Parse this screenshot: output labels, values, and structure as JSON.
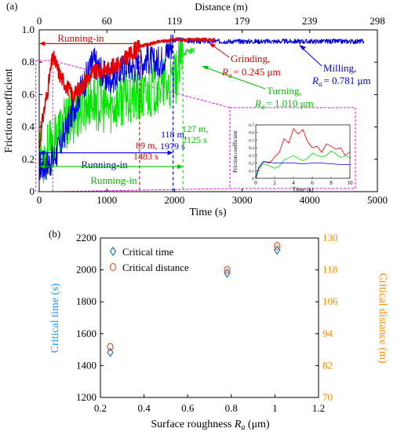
{
  "chart_data": [
    {
      "panel_label": "(a)",
      "type": "line",
      "xlabel": "Time (s)",
      "ylabel": "Friction coefficient",
      "top_axis_label": "Distance (m)",
      "xlim": [
        0,
        5000
      ],
      "ylim": [
        0,
        1.0
      ],
      "xticks": [
        0,
        1000,
        2000,
        3000,
        4000,
        5000
      ],
      "yticks": [
        0,
        0.2,
        0.4,
        0.6,
        0.8,
        1.0
      ],
      "yticklabels": [
        "0",
        "0.2",
        "0.4",
        "0.6",
        "0.8",
        "1.0"
      ],
      "top_ticks": [
        {
          "time": 0,
          "label": "0"
        },
        {
          "time": 1000,
          "label": "60"
        },
        {
          "time": 2000,
          "label": "119"
        },
        {
          "time": 3000,
          "label": "179"
        },
        {
          "time": 4000,
          "label": "239"
        },
        {
          "time": 5000,
          "label": "298"
        }
      ],
      "colors": {
        "Milling": "#0000e0",
        "Grinding": "#e60000",
        "Turning": "#00e600",
        "zoom_box": "#ff00ff"
      },
      "series": [
        {
          "key": "Milling",
          "label_name": "Milling,",
          "label_ra": "= 0.781 μm",
          "x": [
            0,
            60,
            120,
            200,
            300,
            400,
            500,
            600,
            700,
            800,
            900,
            1000,
            1100,
            1200,
            1300,
            1400,
            1500,
            1600,
            1700,
            1800,
            1900,
            1979,
            2100,
            2300,
            2500,
            3000,
            3500,
            4000,
            4500,
            4800
          ],
          "y": [
            0.17,
            0.17,
            0.18,
            0.21,
            0.28,
            0.4,
            0.52,
            0.62,
            0.72,
            0.82,
            0.76,
            0.7,
            0.72,
            0.76,
            0.8,
            0.78,
            0.8,
            0.84,
            0.8,
            0.82,
            0.88,
            0.94,
            0.94,
            0.93,
            0.93,
            0.93,
            0.93,
            0.93,
            0.93,
            0.93
          ]
        },
        {
          "key": "Grinding",
          "label_name": "Grinding,",
          "label_ra": "= 0.245 μm",
          "x": [
            0,
            60,
            120,
            200,
            250,
            300,
            400,
            500,
            600,
            700,
            800,
            900,
            1000,
            1100,
            1200,
            1300,
            1400,
            1483,
            1600,
            1800,
            2000,
            2200,
            2400,
            2600
          ],
          "y": [
            0.28,
            0.48,
            0.62,
            0.84,
            0.79,
            0.73,
            0.66,
            0.6,
            0.64,
            0.7,
            0.74,
            0.75,
            0.76,
            0.78,
            0.8,
            0.84,
            0.87,
            0.9,
            0.91,
            0.93,
            0.94,
            0.94,
            0.94,
            0.94
          ]
        },
        {
          "key": "Turning",
          "label_name": "Turning,",
          "label_ra": "= 1.010 μm",
          "x": [
            0,
            60,
            120,
            200,
            300,
            400,
            500,
            600,
            700,
            800,
            900,
            1000,
            1100,
            1200,
            1300,
            1400,
            1500,
            1600,
            1700,
            1800,
            1900,
            2000,
            2125,
            2300
          ],
          "y": [
            0.33,
            0.22,
            0.28,
            0.3,
            0.4,
            0.44,
            0.48,
            0.52,
            0.56,
            0.58,
            0.55,
            0.53,
            0.55,
            0.58,
            0.62,
            0.6,
            0.58,
            0.62,
            0.66,
            0.68,
            0.66,
            0.7,
            0.86,
            0.88
          ]
        }
      ],
      "ra_symbol": "R",
      "ra_sub": "a",
      "annotations": {
        "running_in_top": "Running-in",
        "running_in_blue": "Running-in",
        "running_in_green": "Running-in",
        "grinding_crit": [
          "89 m,",
          "1483 s"
        ],
        "milling_crit": [
          "118 m,",
          "1979 s"
        ],
        "turning_crit": [
          "127 m,",
          "2125 s"
        ]
      },
      "inset": {
        "xlabel": "Time (s)",
        "ylabel": "Friction coefficient",
        "xlim": [
          0,
          10
        ],
        "ylim": [
          0,
          0.7
        ],
        "xticks": [
          0,
          2,
          4,
          6,
          8,
          10
        ],
        "yticks": [
          0,
          0.1,
          0.2,
          0.3,
          0.4,
          0.5,
          0.6,
          0.7
        ],
        "yticklabels": [
          "0",
          "0.1",
          "0.2",
          "0.3",
          "0.4",
          "0.5",
          "0.6",
          "0.7"
        ],
        "series": [
          {
            "key": "Grinding",
            "x": [
              0,
              0.3,
              0.8,
              1.5,
              2,
              2.5,
              3,
              3.5,
              4,
              4.5,
              5,
              5.5,
              6,
              6.5,
              7,
              7.5,
              8,
              8.5,
              9,
              9.5,
              10
            ],
            "y": [
              0,
              0.13,
              0.22,
              0.2,
              0.28,
              0.34,
              0.52,
              0.46,
              0.65,
              0.58,
              0.64,
              0.48,
              0.4,
              0.42,
              0.34,
              0.45,
              0.42,
              0.38,
              0.4,
              0.3,
              0.35
            ]
          },
          {
            "key": "Turning",
            "x": [
              0,
              0.3,
              0.8,
              1.5,
              2,
              2.5,
              3,
              3.5,
              4,
              4.5,
              5,
              5.5,
              6,
              6.5,
              7,
              7.5,
              8,
              8.5,
              9,
              9.5,
              10
            ],
            "y": [
              0,
              0.1,
              0.2,
              0.16,
              0.13,
              0.16,
              0.24,
              0.27,
              0.3,
              0.26,
              0.23,
              0.26,
              0.33,
              0.3,
              0.28,
              0.3,
              0.36,
              0.32,
              0.27,
              0.3,
              0.27
            ]
          },
          {
            "key": "Milling",
            "x": [
              0,
              0.3,
              0.8,
              1.5,
              2,
              3,
              4,
              5,
              6,
              7,
              8,
              9,
              10
            ],
            "y": [
              0,
              0.14,
              0.22,
              0.21,
              0.2,
              0.2,
              0.2,
              0.19,
              0.2,
              0.2,
              0.19,
              0.18,
              0.18
            ]
          }
        ]
      }
    },
    {
      "panel_label": "(b)",
      "type": "scatter",
      "xlabel_main": "Surface roughness ",
      "xlabel_symbol": "R",
      "xlabel_sub": "a",
      "xlabel_unit": " (μm)",
      "ylabel_left": "Critical time (s)",
      "ylabel_right": "Critical distance (m)",
      "xlim": [
        0.2,
        1.2
      ],
      "ylim_left": [
        1200,
        2200
      ],
      "ylim_right": [
        70,
        130
      ],
      "xticks": [
        0.2,
        0.4,
        0.6,
        0.8,
        1.0,
        1.2
      ],
      "xticklabels": [
        "0.2",
        "0.4",
        "0.6",
        "0.8",
        "1",
        "1.2"
      ],
      "yticks_left": [
        1200,
        1400,
        1600,
        1800,
        2000,
        2200
      ],
      "yticks_right": [
        70,
        82,
        94,
        106,
        118,
        130
      ],
      "colors": {
        "left": "#1e90ff",
        "right": "#ff8c00",
        "time_marker": "#1e6fd0",
        "distance_marker": "#e05a2a"
      },
      "series": [
        {
          "name": "Critical time",
          "axis": "left",
          "marker": "diamond",
          "x": [
            0.245,
            0.781,
            1.01
          ],
          "y": [
            1483,
            1979,
            2125
          ]
        },
        {
          "name": "Critical distance",
          "axis": "right",
          "marker": "circle",
          "x": [
            0.245,
            0.781,
            1.01
          ],
          "y": [
            89,
            118,
            127
          ]
        }
      ]
    }
  ]
}
